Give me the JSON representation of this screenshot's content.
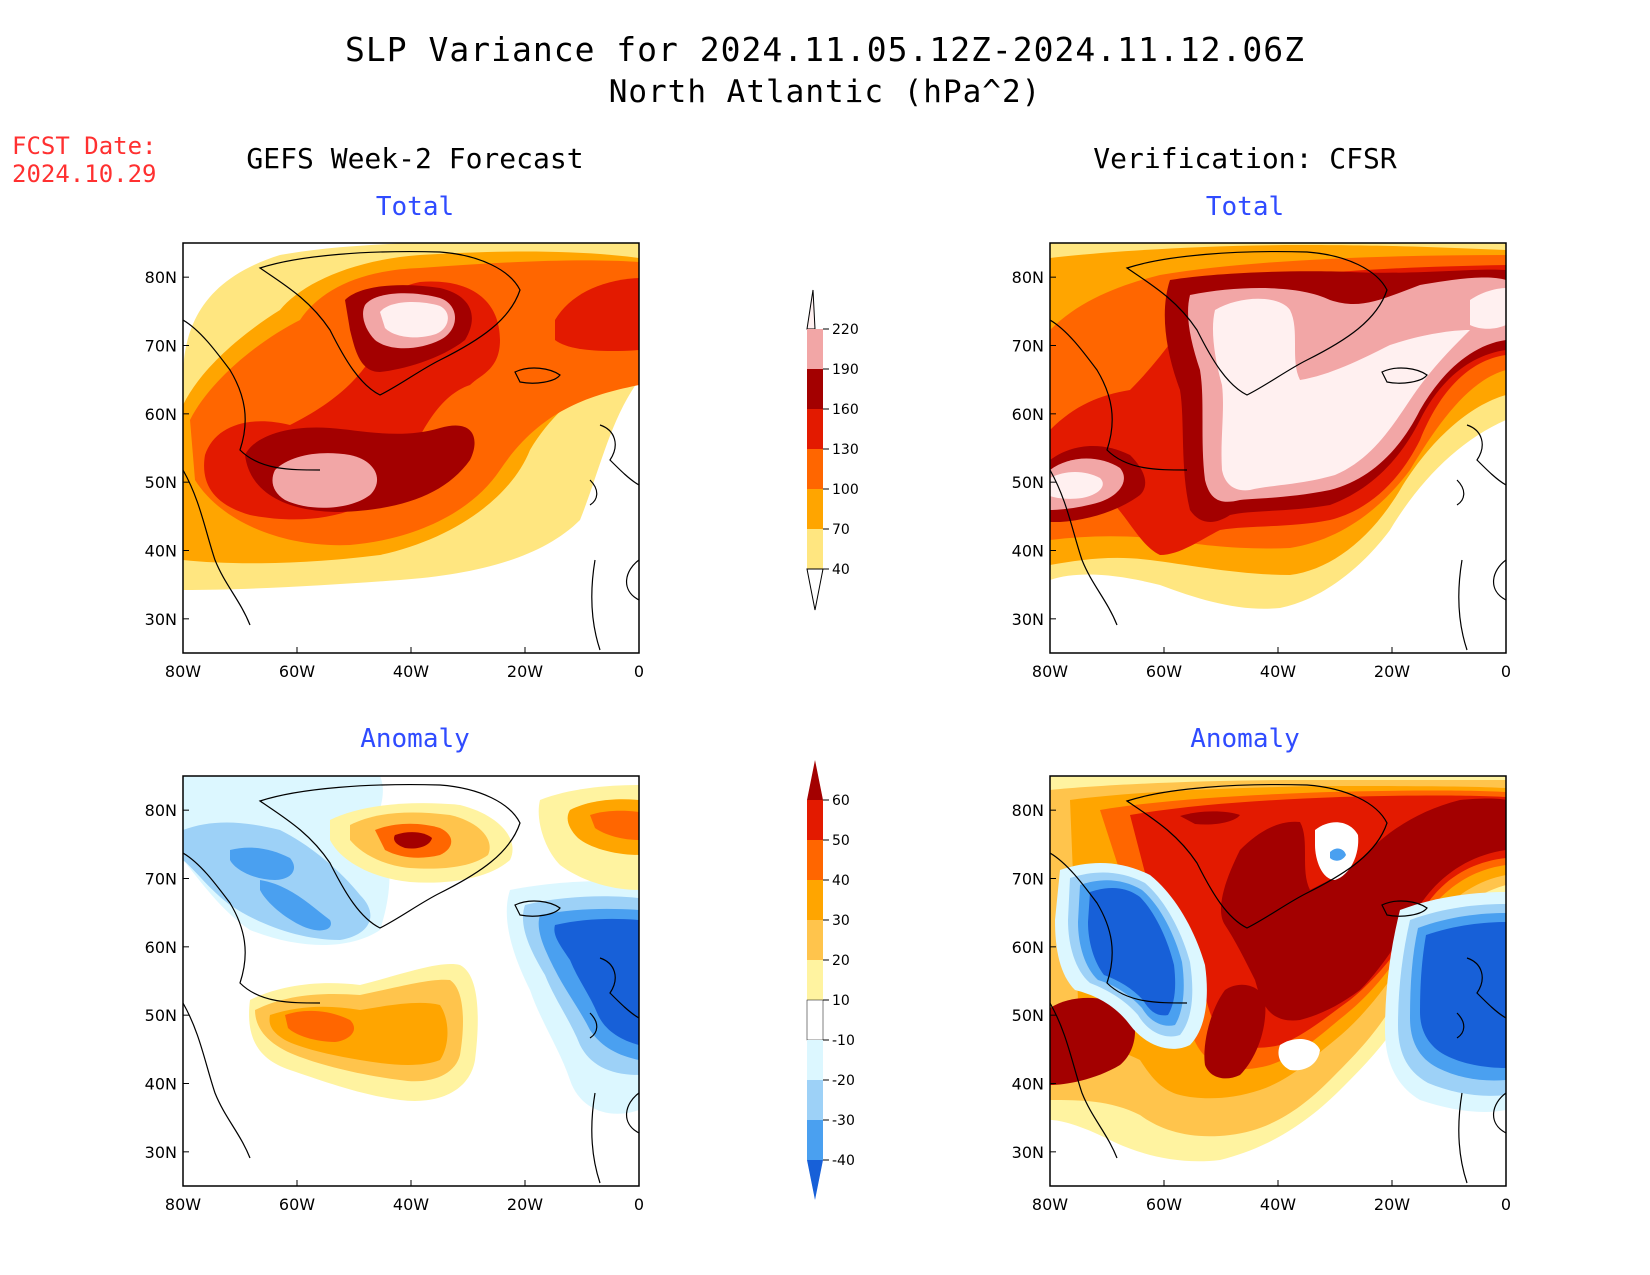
{
  "title": {
    "line1": "SLP Variance for 2024.11.05.12Z-2024.11.12.06Z",
    "line2": "North Atlantic (hPa^2)"
  },
  "fcst_date": {
    "label": "FCST Date:",
    "value": "2024.10.29"
  },
  "columns": {
    "left": "GEFS Week-2 Forecast",
    "right": "Verification: CFSR"
  },
  "subtitles": {
    "top": "Total",
    "bottom": "Anomaly"
  },
  "colors": {
    "total": [
      "#fff0f0",
      "#f2a6a6",
      "#a30000",
      "#e31a00",
      "#ff6600",
      "#ffa500",
      "#ffe680"
    ],
    "anomaly": [
      "#a30000",
      "#e31a00",
      "#ff6600",
      "#ffa500",
      "#ffc44c",
      "#fff3a0",
      "#ffffff",
      "#dcf7ff",
      "#9dd1f7",
      "#4aa0f0",
      "#1760d8"
    ]
  },
  "chart_data": [
    {
      "type": "heatmap",
      "panel": "GEFS Week-2 Forecast - Total",
      "xlabel_ticks": [
        "80W",
        "60W",
        "40W",
        "20W",
        "0"
      ],
      "ylabel_ticks": [
        "80N",
        "70N",
        "60N",
        "50N",
        "40N",
        "30N"
      ],
      "xlim": [
        -80,
        0
      ],
      "ylim": [
        25,
        85
      ],
      "features": [
        {
          "name": "max over Labrador/Newfoundland",
          "lon": -54,
          "lat": 51,
          "level": 190
        },
        {
          "name": "max over Greenland",
          "lon": -38,
          "lat": 76,
          "level": 220
        }
      ]
    },
    {
      "type": "heatmap",
      "panel": "Verification: CFSR - Total",
      "xlabel_ticks": [
        "80W",
        "60W",
        "40W",
        "20W",
        "0"
      ],
      "ylabel_ticks": [
        "80N",
        "70N",
        "60N",
        "50N",
        "40N",
        "30N"
      ],
      "xlim": [
        -80,
        0
      ],
      "ylim": [
        25,
        85
      ],
      "features": [
        {
          "name": "central Atlantic maximum",
          "lon": -38,
          "lat": 60,
          "level": 220
        },
        {
          "name": "US east coast maximum",
          "lon": -75,
          "lat": 49,
          "level": 220
        }
      ]
    },
    {
      "type": "heatmap",
      "panel": "GEFS Week-2 Forecast - Anomaly",
      "xlabel_ticks": [
        "80W",
        "60W",
        "40W",
        "20W",
        "0"
      ],
      "ylabel_ticks": [
        "80N",
        "70N",
        "60N",
        "50N",
        "40N",
        "30N"
      ],
      "xlim": [
        -80,
        0
      ],
      "ylim": [
        25,
        85
      ],
      "features": [
        {
          "name": "positive anomaly over Greenland",
          "lon": -35,
          "lat": 76,
          "level": 60
        },
        {
          "name": "positive anomaly near Newfoundland",
          "lon": -52,
          "lat": 50,
          "level": 50
        },
        {
          "name": "negative anomaly west of Europe",
          "lon": -8,
          "lat": 58,
          "level": -40
        }
      ]
    },
    {
      "type": "heatmap",
      "panel": "Verification: CFSR - Anomaly",
      "xlabel_ticks": [
        "80W",
        "60W",
        "40W",
        "20W",
        "0"
      ],
      "ylabel_ticks": [
        "80N",
        "70N",
        "60N",
        "50N",
        "40N",
        "30N"
      ],
      "xlim": [
        -80,
        0
      ],
      "ylim": [
        25,
        85
      ],
      "features": [
        {
          "name": "positive anomaly central Atlantic",
          "lon": -40,
          "lat": 60,
          "level": 60
        },
        {
          "name": "negative anomaly west of Europe",
          "lon": -8,
          "lat": 55,
          "level": -40
        },
        {
          "name": "negative anomaly Labrador Sea",
          "lon": -60,
          "lat": 60,
          "level": -40
        }
      ]
    }
  ],
  "colorbars": {
    "total": {
      "labels": [
        "220",
        "190",
        "160",
        "130",
        "100",
        "70",
        "40"
      ]
    },
    "anomaly": {
      "labels": [
        "60",
        "50",
        "40",
        "30",
        "20",
        "10",
        "-10",
        "-20",
        "-30",
        "-40"
      ]
    }
  }
}
